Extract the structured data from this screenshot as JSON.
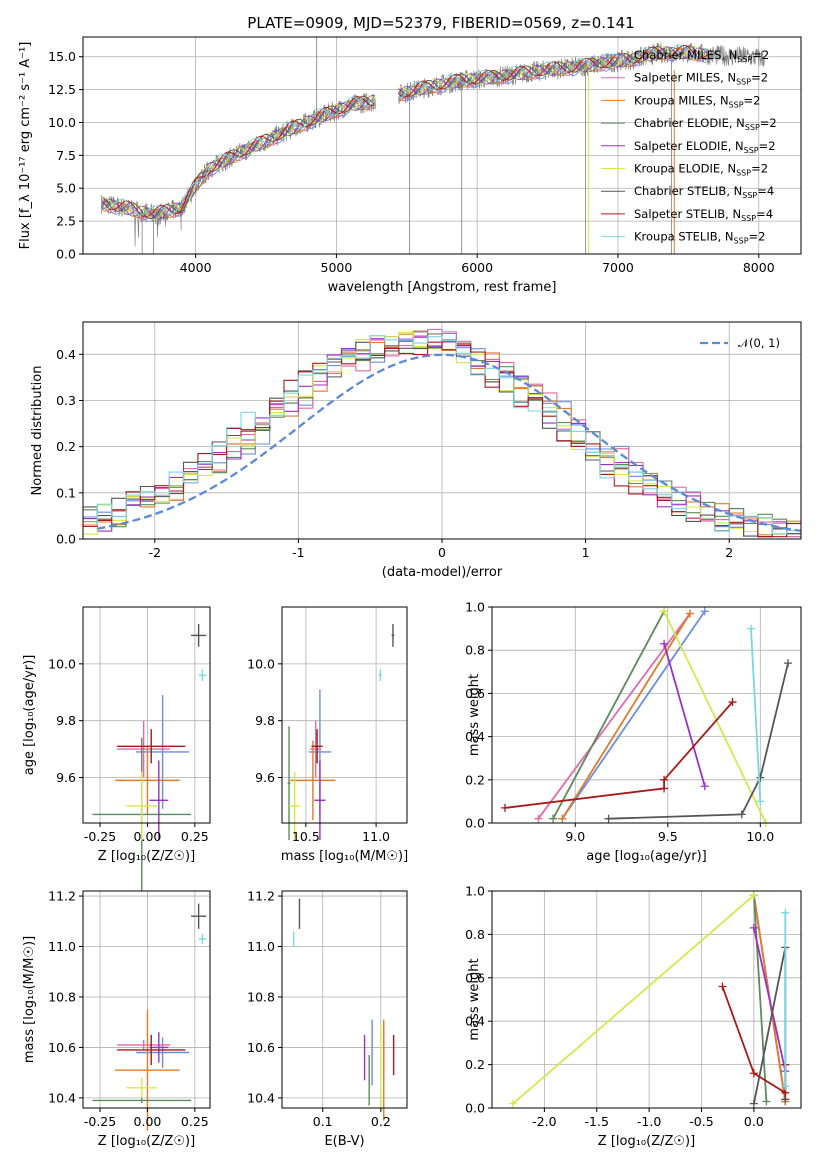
{
  "title": "PLATE=0909, MJD=52379, FIBERID=0569, z=0.141",
  "colors": {
    "Chabrier MILES": "#6a8ee0",
    "Salpeter MILES": "#e06aa8",
    "Kroupa MILES": "#e07b2a",
    "Chabrier ELODIE": "#5d8a5d",
    "Salpeter ELODIE": "#9b30c8",
    "Kroupa ELODIE": "#d4e84a",
    "Chabrier STELIB": "#555555",
    "Salpeter STELIB": "#a81a1a",
    "Kroupa STELIB": "#7ad6e0",
    "data": "#808080",
    "normal": "#5b8ad6"
  },
  "chart_data": [
    {
      "type": "line",
      "xlabel": "wavelength [Angstrom, rest frame]",
      "ylabel": "Flux [f_λ 10⁻¹⁷ erg cm⁻² s⁻¹ A⁻¹]",
      "xlim": [
        3200,
        8300
      ],
      "ylim": [
        0,
        16.5
      ],
      "xticks": [
        4000,
        5000,
        6000,
        7000,
        8000
      ],
      "yticks": [
        0.0,
        2.5,
        5.0,
        7.5,
        10.0,
        12.5,
        15.0
      ],
      "spectrum_trend": {
        "x": [
          3350,
          3500,
          3700,
          3900,
          4000,
          4100,
          4300,
          4500,
          4700,
          4900,
          5100,
          5300,
          5500,
          5700,
          5900,
          6100,
          6300,
          6500,
          6700,
          6900,
          7100,
          7300,
          7500,
          7700,
          7900,
          8000
        ],
        "y": [
          3.8,
          3.5,
          3.0,
          3.5,
          5.2,
          6.5,
          7.6,
          8.6,
          9.6,
          10.5,
          11.3,
          11.7,
          12.3,
          12.8,
          13.2,
          13.4,
          13.7,
          14.0,
          14.2,
          14.5,
          14.8,
          15.3,
          15.3,
          15.1,
          15.0,
          14.9
        ]
      },
      "legend": [
        {
          "label": "Chabrier MILES, N",
          "sub": "SSP",
          "tail": "=2"
        },
        {
          "label": "Salpeter MILES, N",
          "sub": "SSP",
          "tail": "=2"
        },
        {
          "label": "Kroupa MILES, N",
          "sub": "SSP",
          "tail": "=2"
        },
        {
          "label": "Chabrier ELODIE, N",
          "sub": "SSP",
          "tail": "=2"
        },
        {
          "label": "Salpeter ELODIE, N",
          "sub": "SSP",
          "tail": "=2"
        },
        {
          "label": "Kroupa ELODIE, N",
          "sub": "SSP",
          "tail": "=2"
        },
        {
          "label": "Chabrier STELIB, N",
          "sub": "SSP",
          "tail": "=4"
        },
        {
          "label": "Salpeter STELIB, N",
          "sub": "SSP",
          "tail": "=4"
        },
        {
          "label": "Kroupa STELIB, N",
          "sub": "SSP",
          "tail": "=2"
        }
      ],
      "legend_location": "top-right"
    },
    {
      "type": "line",
      "xlabel": "(data-model)/error",
      "ylabel": "Normed distribution",
      "xlim": [
        -2.5,
        2.5
      ],
      "ylim": [
        0,
        0.47
      ],
      "xticks": [
        -2,
        -1,
        0,
        1,
        2
      ],
      "yticks": [
        0.0,
        0.1,
        0.2,
        0.3,
        0.4
      ],
      "normal_legend": "𝒩(0, 1)",
      "bin_width": 0.1,
      "legend_location": "top-right"
    },
    {
      "type": "scatter",
      "xlabel": "Z [log₁₀(Z/Z☉)]",
      "ylabel": "age  [log₁₀(age/yr)]",
      "xlim": [
        -0.34,
        0.33
      ],
      "ylim": [
        9.44,
        10.2
      ],
      "xticks": [
        -0.25,
        0.0,
        0.25
      ],
      "yticks": [
        9.6,
        9.8,
        10.0
      ],
      "points": [
        {
          "s": "Chabrier MILES",
          "x": 0.08,
          "y": 9.69,
          "xe": 0.14,
          "ye": 0.2
        },
        {
          "s": "Salpeter MILES",
          "x": -0.02,
          "y": 9.7,
          "xe": 0.14,
          "ye": 0.1
        },
        {
          "s": "Kroupa MILES",
          "x": 0.0,
          "y": 9.59,
          "xe": 0.17,
          "ye": 0.12
        },
        {
          "s": "Chabrier ELODIE",
          "x": -0.03,
          "y": 9.47,
          "xe": 0.26,
          "ye": 0.27
        },
        {
          "s": "Salpeter ELODIE",
          "x": 0.06,
          "y": 9.52,
          "xe": 0.05,
          "ye": 0.14
        },
        {
          "s": "Kroupa ELODIE",
          "x": -0.03,
          "y": 9.5,
          "xe": 0.08,
          "ye": 0.12
        },
        {
          "s": "Chabrier STELIB",
          "x": 0.27,
          "y": 10.1,
          "xe": 0.04,
          "ye": 0.04
        },
        {
          "s": "Salpeter STELIB",
          "x": 0.02,
          "y": 9.71,
          "xe": 0.18,
          "ye": 0.06
        },
        {
          "s": "Kroupa STELIB",
          "x": 0.29,
          "y": 9.96,
          "xe": 0.02,
          "ye": 0.02
        }
      ]
    },
    {
      "type": "scatter",
      "xlabel": "mass [log₁₀(M/M☉)]",
      "ylabel": "",
      "xlim": [
        10.33,
        11.22
      ],
      "ylim": [
        9.44,
        10.2
      ],
      "xticks": [
        10.5,
        11.0
      ],
      "yticks": [
        9.6,
        9.8,
        10.0
      ],
      "points": [
        {
          "s": "Chabrier MILES",
          "x": 10.6,
          "y": 9.69,
          "xe": 0.08,
          "ye": 0.22
        },
        {
          "s": "Salpeter MILES",
          "x": 10.57,
          "y": 9.7,
          "xe": 0.04,
          "ye": 0.1
        },
        {
          "s": "Kroupa MILES",
          "x": 10.55,
          "y": 9.59,
          "xe": 0.16,
          "ye": 0.14
        },
        {
          "s": "Chabrier ELODIE",
          "x": 10.38,
          "y": 9.58,
          "xe": 0.01,
          "ye": 0.2
        },
        {
          "s": "Salpeter ELODIE",
          "x": 10.6,
          "y": 9.52,
          "xe": 0.04,
          "ye": 0.14
        },
        {
          "s": "Kroupa ELODIE",
          "x": 10.42,
          "y": 9.5,
          "xe": 0.04,
          "ye": 0.12
        },
        {
          "s": "Chabrier STELIB",
          "x": 11.12,
          "y": 10.1,
          "xe": 0.01,
          "ye": 0.04
        },
        {
          "s": "Salpeter STELIB",
          "x": 10.58,
          "y": 9.71,
          "xe": 0.04,
          "ye": 0.06
        },
        {
          "s": "Kroupa STELIB",
          "x": 11.03,
          "y": 9.96,
          "xe": 0.01,
          "ye": 0.02
        }
      ]
    },
    {
      "type": "line",
      "xlabel": "age  [log₁₀(age/yr)]",
      "ylabel": "mass weight",
      "xlim": [
        8.55,
        10.22
      ],
      "ylim": [
        0,
        1.0
      ],
      "xticks": [
        9.0,
        9.5,
        10.0
      ],
      "yticks": [
        0.0,
        0.2,
        0.4,
        0.6,
        0.8,
        1.0
      ],
      "lines": [
        {
          "s": "Chabrier MILES",
          "x": [
            8.93,
            9.7
          ],
          "y": [
            0.02,
            0.98
          ]
        },
        {
          "s": "Salpeter MILES",
          "x": [
            8.8,
            9.62
          ],
          "y": [
            0.02,
            0.97
          ]
        },
        {
          "s": "Kroupa MILES",
          "x": [
            8.93,
            9.62
          ],
          "y": [
            0.02,
            0.97
          ]
        },
        {
          "s": "Chabrier ELODIE",
          "x": [
            8.88,
            9.48
          ],
          "y": [
            0.02,
            0.98
          ]
        },
        {
          "s": "Salpeter ELODIE",
          "x": [
            9.48,
            9.7
          ],
          "y": [
            0.83,
            0.17
          ]
        },
        {
          "s": "Kroupa ELODIE",
          "x": [
            9.48,
            10.03
          ],
          "y": [
            0.98,
            0.0
          ]
        },
        {
          "s": "Chabrier STELIB",
          "x": [
            9.18,
            9.9,
            10.0,
            10.15
          ],
          "y": [
            0.02,
            0.04,
            0.21,
            0.74
          ]
        },
        {
          "s": "Salpeter STELIB",
          "x": [
            8.62,
            9.48,
            9.48,
            9.85
          ],
          "y": [
            0.07,
            0.16,
            0.2,
            0.56
          ]
        },
        {
          "s": "Kroupa STELIB",
          "x": [
            9.95,
            10.0
          ],
          "y": [
            0.9,
            0.1
          ]
        }
      ]
    },
    {
      "type": "scatter",
      "xlabel": "Z [log₁₀(Z/Z☉)]",
      "ylabel": "mass [log₁₀(M/M☉)]",
      "xlim": [
        -0.34,
        0.33
      ],
      "ylim": [
        10.36,
        11.22
      ],
      "xticks": [
        -0.25,
        0.0,
        0.25
      ],
      "yticks": [
        10.4,
        10.6,
        10.8,
        11.0,
        11.2
      ],
      "points": [
        {
          "s": "Chabrier MILES",
          "x": 0.08,
          "y": 10.58,
          "xe": 0.14,
          "ye": 0.06
        },
        {
          "s": "Salpeter MILES",
          "x": -0.02,
          "y": 10.61,
          "xe": 0.14,
          "ye": 0.02
        },
        {
          "s": "Kroupa MILES",
          "x": 0.0,
          "y": 10.51,
          "xe": 0.17,
          "ye": 0.24
        },
        {
          "s": "Chabrier ELODIE",
          "x": -0.03,
          "y": 10.39,
          "xe": 0.26,
          "ye": 0.01
        },
        {
          "s": "Salpeter ELODIE",
          "x": 0.06,
          "y": 10.6,
          "xe": 0.05,
          "ye": 0.06
        },
        {
          "s": "Kroupa ELODIE",
          "x": -0.03,
          "y": 10.44,
          "xe": 0.08,
          "ye": 0.04
        },
        {
          "s": "Chabrier STELIB",
          "x": 0.27,
          "y": 11.12,
          "xe": 0.04,
          "ye": 0.05
        },
        {
          "s": "Salpeter STELIB",
          "x": 0.02,
          "y": 10.59,
          "xe": 0.18,
          "ye": 0.06
        },
        {
          "s": "Kroupa STELIB",
          "x": 0.29,
          "y": 11.03,
          "xe": 0.02,
          "ye": 0.02
        }
      ]
    },
    {
      "type": "scatter",
      "xlabel": "E(B-V)",
      "ylabel": "",
      "xlim": [
        0.03,
        0.245
      ],
      "ylim": [
        10.36,
        11.22
      ],
      "xticks": [
        0.1,
        0.2
      ],
      "yticks": [
        10.4,
        10.6,
        10.8,
        11.0,
        11.2
      ],
      "points": [
        {
          "s": "Chabrier MILES",
          "x": 0.185,
          "y": 10.58,
          "xe": 0,
          "ye": 0.13
        },
        {
          "s": "Salpeter MILES",
          "x": 0.205,
          "y": 10.58,
          "xe": 0,
          "ye": 0.1
        },
        {
          "s": "Kroupa MILES",
          "x": 0.205,
          "y": 10.51,
          "xe": 0,
          "ye": 0.2
        },
        {
          "s": "Chabrier ELODIE",
          "x": 0.18,
          "y": 10.47,
          "xe": 0,
          "ye": 0.1
        },
        {
          "s": "Salpeter ELODIE",
          "x": 0.172,
          "y": 10.56,
          "xe": 0,
          "ye": 0.09
        },
        {
          "s": "Kroupa ELODIE",
          "x": 0.2,
          "y": 10.52,
          "xe": 0,
          "ye": 0.17
        },
        {
          "s": "Chabrier STELIB",
          "x": 0.06,
          "y": 11.13,
          "xe": 0,
          "ye": 0.06
        },
        {
          "s": "Salpeter STELIB",
          "x": 0.222,
          "y": 10.57,
          "xe": 0,
          "ye": 0.08
        },
        {
          "s": "Kroupa STELIB",
          "x": 0.05,
          "y": 11.03,
          "xe": 0,
          "ye": 0.03
        }
      ]
    },
    {
      "type": "line",
      "xlabel": "Z [log₁₀(Z/Z☉)]",
      "ylabel": "mass weight",
      "xlim": [
        -2.5,
        0.45
      ],
      "ylim": [
        0,
        1.0
      ],
      "xticks": [
        -2.0,
        -1.5,
        -1.0,
        -0.5,
        0.0
      ],
      "yticks": [
        0.0,
        0.2,
        0.4,
        0.6,
        0.8,
        1.0
      ],
      "lines": [
        {
          "s": "Chabrier MILES",
          "x": [
            0.0,
            0.3
          ],
          "y": [
            0.98,
            0.03
          ]
        },
        {
          "s": "Salpeter MILES",
          "x": [
            0.0,
            0.3
          ],
          "y": [
            0.98,
            0.03
          ]
        },
        {
          "s": "Kroupa MILES",
          "x": [
            0.0,
            0.3
          ],
          "y": [
            0.98,
            0.03
          ]
        },
        {
          "s": "Chabrier ELODIE",
          "x": [
            0.0,
            0.12
          ],
          "y": [
            0.98,
            0.03
          ]
        },
        {
          "s": "Salpeter ELODIE",
          "x": [
            0.0,
            0.3
          ],
          "y": [
            0.83,
            0.17
          ]
        },
        {
          "s": "Kroupa ELODIE",
          "x": [
            -2.3,
            0.0
          ],
          "y": [
            0.02,
            0.98
          ]
        },
        {
          "s": "Chabrier STELIB",
          "x": [
            0.0,
            0.3,
            0.3,
            0.3
          ],
          "y": [
            0.02,
            0.74,
            0.2,
            0.04
          ]
        },
        {
          "s": "Salpeter STELIB",
          "x": [
            -0.3,
            0.0,
            0.3,
            0.3
          ],
          "y": [
            0.56,
            0.16,
            0.07,
            0.2
          ]
        },
        {
          "s": "Kroupa STELIB",
          "x": [
            0.3,
            0.3
          ],
          "y": [
            0.9,
            0.1
          ]
        }
      ]
    }
  ]
}
